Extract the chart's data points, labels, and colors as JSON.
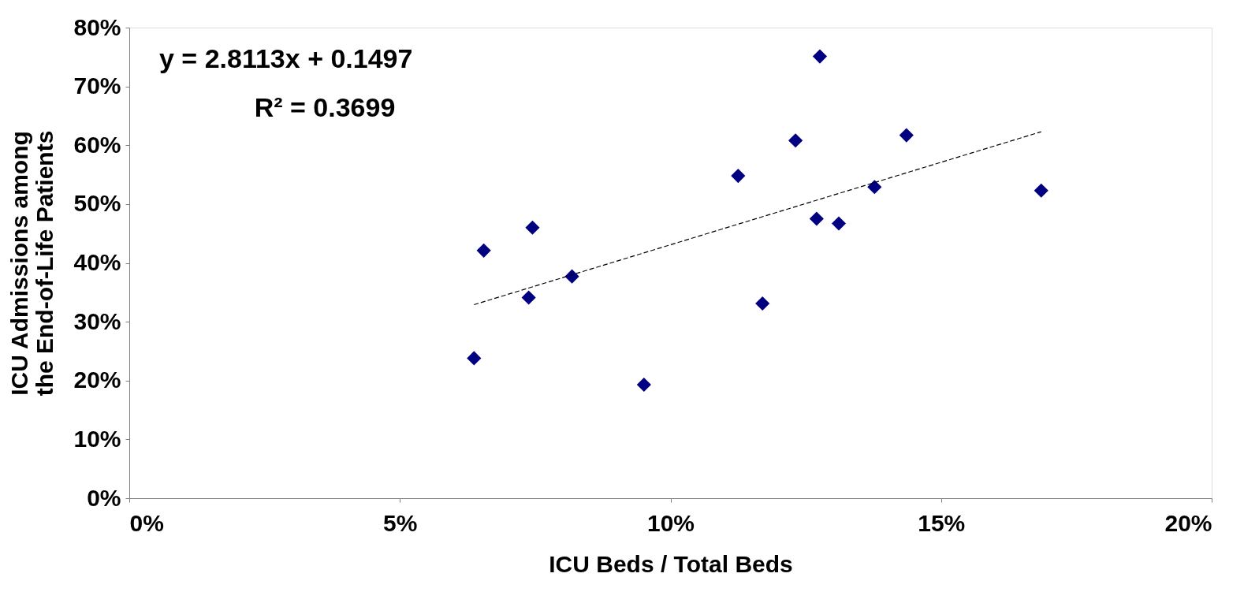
{
  "chart_data": {
    "type": "scatter",
    "xlabel": "ICU Beds / Total Beds",
    "ylabel": "ICU Admissions among\nthe End-of-Life Patients",
    "annotations": [
      "y = 2.8113x + 0.1497",
      "R² = 0.3699"
    ],
    "xlim": [
      0,
      20
    ],
    "xticks": [
      {
        "value": 0,
        "label": "0%"
      },
      {
        "value": 5,
        "label": "5%"
      },
      {
        "value": 10,
        "label": "10%"
      },
      {
        "value": 15,
        "label": "15%"
      },
      {
        "value": 20,
        "label": "20%"
      }
    ],
    "ylim": [
      0,
      80
    ],
    "yticks": [
      {
        "value": 0,
        "label": "0%"
      },
      {
        "value": 10,
        "label": "10%"
      },
      {
        "value": 20,
        "label": "20%"
      },
      {
        "value": 30,
        "label": "30%"
      },
      {
        "value": 40,
        "label": "40%"
      },
      {
        "value": 50,
        "label": "50%"
      },
      {
        "value": 60,
        "label": "60%"
      },
      {
        "value": 70,
        "label": "70%"
      },
      {
        "value": 80,
        "label": "80%"
      }
    ],
    "grid": false,
    "series": [
      {
        "color": "#000080",
        "marker": "diamond",
        "x": [
          6.37,
          6.55,
          7.38,
          7.45,
          8.18,
          9.51,
          11.25,
          11.7,
          12.31,
          12.7,
          12.76,
          13.11,
          13.77,
          14.36,
          16.85
        ],
        "values": [
          23.8,
          42.1,
          34.1,
          46.0,
          37.7,
          19.3,
          54.8,
          33.1,
          60.8,
          47.5,
          75.1,
          46.7,
          52.9,
          61.7,
          52.3
        ]
      },
      {
        "type": "line",
        "color": "#000000",
        "line_style": "dashed",
        "x": [
          6.37,
          16.85
        ],
        "values": [
          32.9,
          62.3
        ]
      }
    ]
  }
}
